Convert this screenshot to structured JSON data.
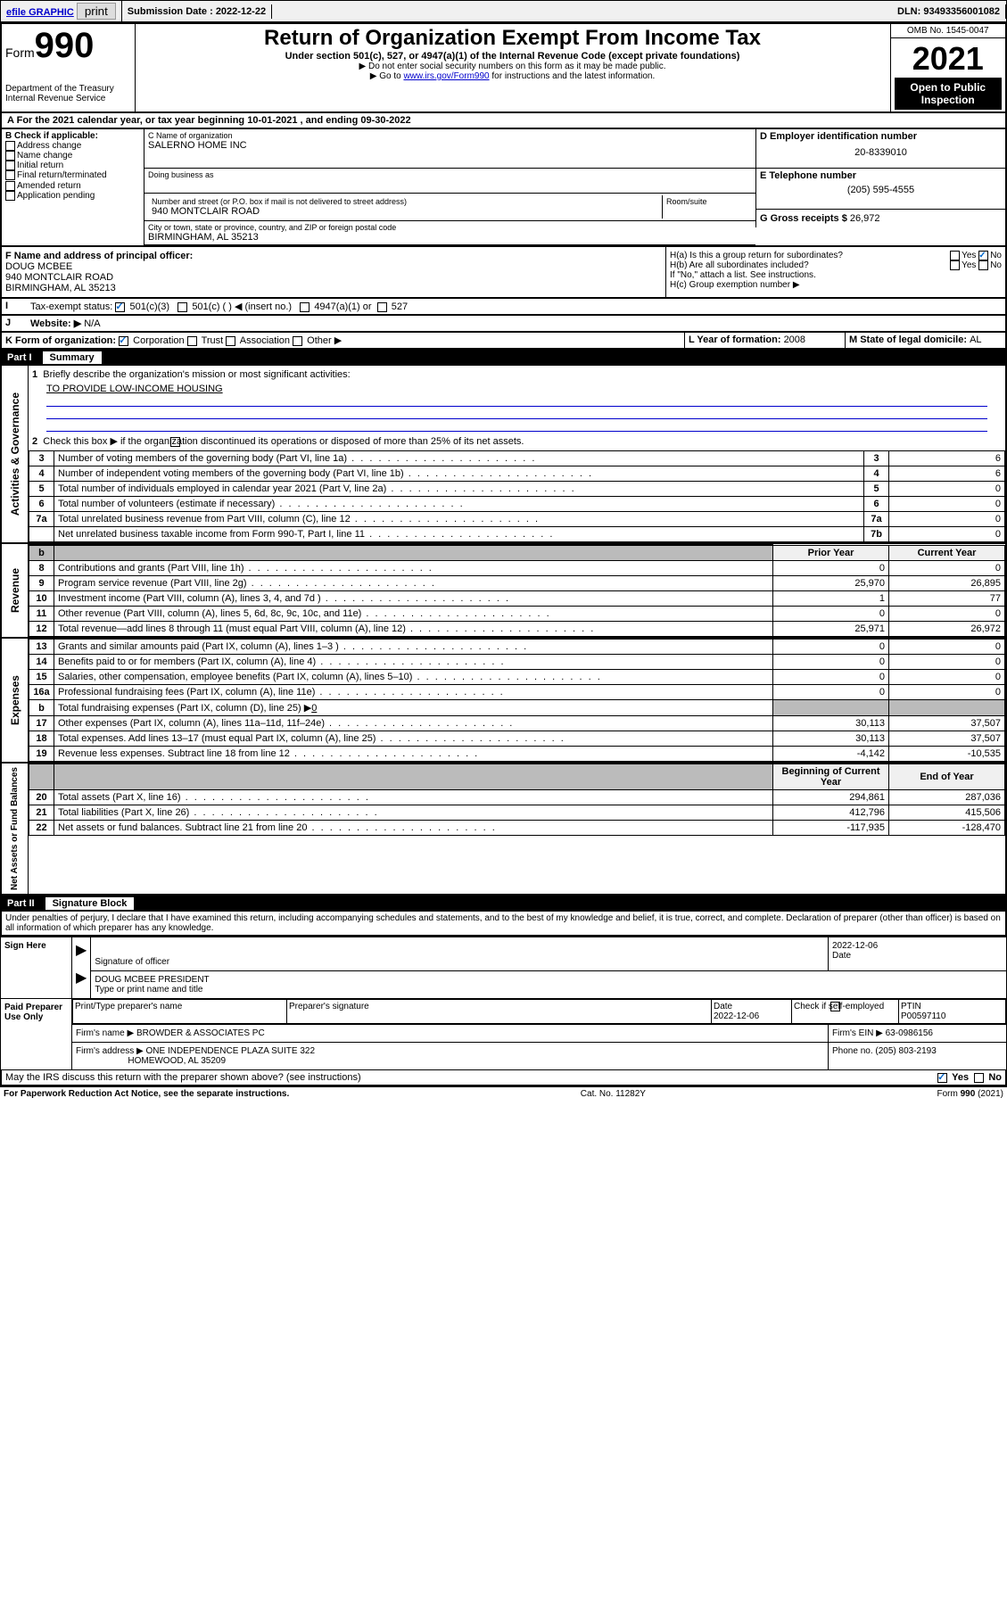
{
  "topbar": {
    "efile": "efile GRAPHIC",
    "print": "print",
    "sub_label": "Submission Date : 2022-12-22",
    "dln": "DLN: 93493356001082"
  },
  "header": {
    "form_word": "Form",
    "form_num": "990",
    "dept": "Department of the Treasury",
    "irs": "Internal Revenue Service",
    "title": "Return of Organization Exempt From Income Tax",
    "sub1": "Under section 501(c), 527, or 4947(a)(1) of the Internal Revenue Code (except private foundations)",
    "sub2": "▶ Do not enter social security numbers on this form as it may be made public.",
    "sub3_pre": "▶ Go to ",
    "sub3_link": "www.irs.gov/Form990",
    "sub3_post": " for instructions and the latest information.",
    "omb": "OMB No. 1545-0047",
    "year": "2021",
    "inspection": "Open to Public Inspection"
  },
  "sectionA": {
    "text_pre": "For the 2021 calendar year, or tax year beginning ",
    "begin": "10-01-2021",
    "mid": " , and ending ",
    "end": "09-30-2022"
  },
  "boxB": {
    "label": "B Check if applicable:",
    "opts": [
      "Address change",
      "Name change",
      "Initial return",
      "Final return/terminated",
      "Amended return",
      "Application pending"
    ]
  },
  "boxC": {
    "label_name": "C Name of organization",
    "org": "SALERNO HOME INC",
    "dba_label": "Doing business as",
    "addr_label": "Number and street (or P.O. box if mail is not delivered to street address)",
    "room_label": "Room/suite",
    "addr": "940 MONTCLAIR ROAD",
    "city_label": "City or town, state or province, country, and ZIP or foreign postal code",
    "city": "BIRMINGHAM, AL  35213"
  },
  "boxD": {
    "label": "D Employer identification number",
    "val": "20-8339010"
  },
  "boxE": {
    "label": "E Telephone number",
    "val": "(205) 595-4555"
  },
  "boxG": {
    "label": "G Gross receipts $ ",
    "val": "26,972"
  },
  "boxF": {
    "label": "F Name and address of principal officer:",
    "name": "DOUG MCBEE",
    "addr1": "940 MONTCLAIR ROAD",
    "addr2": "BIRMINGHAM, AL  35213"
  },
  "boxH": {
    "ha": "H(a)  Is this a group return for subordinates?",
    "hb": "H(b)  Are all subordinates included?",
    "hb_note": "If \"No,\" attach a list. See instructions.",
    "hc": "H(c)  Group exemption number ▶",
    "yes": "Yes",
    "no": "No"
  },
  "rowI": {
    "label": "Tax-exempt status:",
    "o1": "501(c)(3)",
    "o2": "501(c) (   ) ◀ (insert no.)",
    "o3": "4947(a)(1) or",
    "o4": "527"
  },
  "rowJ": {
    "label": "Website: ▶",
    "val": "N/A"
  },
  "rowK": {
    "label": "K Form of organization:",
    "o1": "Corporation",
    "o2": "Trust",
    "o3": "Association",
    "o4": "Other ▶"
  },
  "rowL": {
    "label": "L Year of formation: ",
    "val": "2008"
  },
  "rowM": {
    "label": "M State of legal domicile: ",
    "val": "AL"
  },
  "part1": {
    "num": "Part I",
    "title": "Summary",
    "l1": "Briefly describe the organization's mission or most significant activities:",
    "l1_val": "TO PROVIDE LOW-INCOME HOUSING",
    "l2": "Check this box ▶        if the organization discontinued its operations or disposed of more than 25% of its net assets.",
    "rows_simple": [
      {
        "n": "3",
        "t": "Number of voting members of the governing body (Part VI, line 1a)",
        "ref": "3",
        "v": "6"
      },
      {
        "n": "4",
        "t": "Number of independent voting members of the governing body (Part VI, line 1b)",
        "ref": "4",
        "v": "6"
      },
      {
        "n": "5",
        "t": "Total number of individuals employed in calendar year 2021 (Part V, line 2a)",
        "ref": "5",
        "v": "0"
      },
      {
        "n": "6",
        "t": "Total number of volunteers (estimate if necessary)",
        "ref": "6",
        "v": "0"
      },
      {
        "n": "7a",
        "t": "Total unrelated business revenue from Part VIII, column (C), line 12",
        "ref": "7a",
        "v": "0"
      },
      {
        "n": "",
        "t": "Net unrelated business taxable income from Form 990-T, Part I, line 11",
        "ref": "7b",
        "v": "0"
      }
    ],
    "col_prior": "Prior Year",
    "col_current": "Current Year",
    "col_beg": "Beginning of Current Year",
    "col_end": "End of Year",
    "revenue": [
      {
        "n": "8",
        "t": "Contributions and grants (Part VIII, line 1h)",
        "p": "0",
        "c": "0"
      },
      {
        "n": "9",
        "t": "Program service revenue (Part VIII, line 2g)",
        "p": "25,970",
        "c": "26,895"
      },
      {
        "n": "10",
        "t": "Investment income (Part VIII, column (A), lines 3, 4, and 7d )",
        "p": "1",
        "c": "77"
      },
      {
        "n": "11",
        "t": "Other revenue (Part VIII, column (A), lines 5, 6d, 8c, 9c, 10c, and 11e)",
        "p": "0",
        "c": "0"
      },
      {
        "n": "12",
        "t": "Total revenue—add lines 8 through 11 (must equal Part VIII, column (A), line 12)",
        "p": "25,971",
        "c": "26,972"
      }
    ],
    "expenses": [
      {
        "n": "13",
        "t": "Grants and similar amounts paid (Part IX, column (A), lines 1–3 )",
        "p": "0",
        "c": "0"
      },
      {
        "n": "14",
        "t": "Benefits paid to or for members (Part IX, column (A), line 4)",
        "p": "0",
        "c": "0"
      },
      {
        "n": "15",
        "t": "Salaries, other compensation, employee benefits (Part IX, column (A), lines 5–10)",
        "p": "0",
        "c": "0"
      },
      {
        "n": "16a",
        "t": "Professional fundraising fees (Part IX, column (A), line 11e)",
        "p": "0",
        "c": "0"
      }
    ],
    "l16b_pre": "Total fundraising expenses (Part IX, column (D), line 25) ▶",
    "l16b_val": "0",
    "expenses2": [
      {
        "n": "17",
        "t": "Other expenses (Part IX, column (A), lines 11a–11d, 11f–24e)",
        "p": "30,113",
        "c": "37,507"
      },
      {
        "n": "18",
        "t": "Total expenses. Add lines 13–17 (must equal Part IX, column (A), line 25)",
        "p": "30,113",
        "c": "37,507"
      },
      {
        "n": "19",
        "t": "Revenue less expenses. Subtract line 18 from line 12",
        "p": "-4,142",
        "c": "-10,535"
      }
    ],
    "assets": [
      {
        "n": "20",
        "t": "Total assets (Part X, line 16)",
        "p": "294,861",
        "c": "287,036"
      },
      {
        "n": "21",
        "t": "Total liabilities (Part X, line 26)",
        "p": "412,796",
        "c": "415,506"
      },
      {
        "n": "22",
        "t": "Net assets or fund balances. Subtract line 21 from line 20",
        "p": "-117,935",
        "c": "-128,470"
      }
    ],
    "side_gov": "Activities & Governance",
    "side_rev": "Revenue",
    "side_exp": "Expenses",
    "side_net": "Net Assets or Fund Balances"
  },
  "part2": {
    "num": "Part II",
    "title": "Signature Block",
    "penalty": "Under penalties of perjury, I declare that I have examined this return, including accompanying schedules and statements, and to the best of my knowledge and belief, it is true, correct, and complete. Declaration of preparer (other than officer) is based on all information of which preparer has any knowledge.",
    "sign_here": "Sign Here",
    "sig_officer": "Signature of officer",
    "sig_date": "Date",
    "sig_date_val": "2022-12-06",
    "officer_name": "DOUG MCBEE PRESIDENT",
    "officer_sub": "Type or print name and title",
    "paid": "Paid Preparer Use Only",
    "prep_name_label": "Print/Type preparer's name",
    "prep_sig_label": "Preparer's signature",
    "prep_date_label": "Date",
    "prep_date": "2022-12-06",
    "prep_check": "Check          if self-employed",
    "ptin_label": "PTIN",
    "ptin": "P00597110",
    "firm_name_label": "Firm's name     ▶",
    "firm_name": "BROWDER & ASSOCIATES PC",
    "firm_ein_label": "Firm's EIN ▶",
    "firm_ein": "63-0986156",
    "firm_addr_label": "Firm's address ▶",
    "firm_addr1": "ONE INDEPENDENCE PLAZA SUITE 322",
    "firm_addr2": "HOMEWOOD, AL  35209",
    "phone_label": "Phone no.",
    "phone": "(205) 803-2193",
    "discuss": "May the IRS discuss this return with the preparer shown above? (see instructions)"
  },
  "footer": {
    "paperwork": "For Paperwork Reduction Act Notice, see the separate instructions.",
    "cat": "Cat. No. 11282Y",
    "form": "Form 990 (2021)"
  }
}
